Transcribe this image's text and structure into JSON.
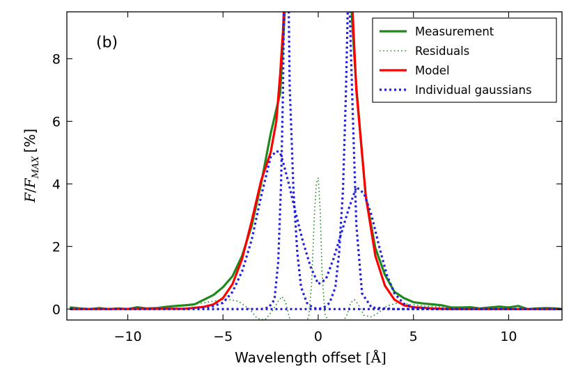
{
  "chart_data": {
    "type": "line",
    "panel_label": "(b)",
    "xlabel": "Wavelength offset",
    "xlabel_unit": "[Å]",
    "ylabel": {
      "F": "F",
      "slash": "/",
      "F_MAX": "F",
      "sub": "MAX",
      "unit": "[%]"
    },
    "xlim": [
      -13.2,
      12.8
    ],
    "ylim": [
      -0.35,
      9.5
    ],
    "x_ticks": [
      -10,
      -5,
      0,
      5,
      10
    ],
    "x_tick_labels": [
      "−10",
      "−5",
      "0",
      "5",
      "10"
    ],
    "y_ticks": [
      0,
      2,
      4,
      6,
      8
    ],
    "y_tick_labels": [
      "0",
      "2",
      "4",
      "6",
      "8"
    ],
    "legend_position": "top-right",
    "colors": {
      "measurement": "#1e8a1e",
      "residuals": "#1e8a1e",
      "model": "#ff0000",
      "gaussians": "#1f1fdd"
    },
    "series": [
      {
        "name": "Measurement",
        "style": "solid-thick",
        "color": "#1e8a1e",
        "x": [
          -13,
          -12.5,
          -12,
          -11.5,
          -11,
          -10.5,
          -10,
          -9.5,
          -9,
          -8.5,
          -8,
          -7.5,
          -7,
          -6.5,
          -6,
          -5.5,
          -5,
          -4.5,
          -4,
          -3.5,
          -3,
          -2.5,
          -2,
          -1.8,
          -1.75,
          1.75,
          1.8,
          2,
          2.5,
          3,
          3.5,
          4,
          4.5,
          5,
          5.5,
          6,
          6.5,
          7,
          7.5,
          8,
          8.5,
          9,
          9.5,
          10,
          10.5,
          11,
          11.5,
          12,
          12.5,
          12.8
        ],
        "y": [
          0.05,
          0.02,
          0.0,
          0.03,
          0.0,
          0.02,
          0.0,
          0.06,
          0.02,
          0.03,
          0.07,
          0.1,
          0.12,
          0.15,
          0.3,
          0.45,
          0.7,
          1.05,
          1.7,
          2.65,
          4.0,
          5.6,
          6.9,
          9.0,
          9.6,
          9.6,
          9.0,
          7.1,
          3.6,
          1.95,
          1.1,
          0.55,
          0.35,
          0.22,
          0.18,
          0.15,
          0.12,
          0.05,
          0.05,
          0.06,
          0.02,
          0.05,
          0.08,
          0.05,
          0.1,
          0.0,
          0.02,
          0.03,
          0.02,
          0.0
        ]
      },
      {
        "name": "Residuals",
        "style": "dotted-thin",
        "color": "#1e8a1e",
        "x": [
          -13,
          -9,
          -7,
          -5.5,
          -4.8,
          -4.2,
          -3.6,
          -3.2,
          -2.8,
          -2.4,
          -2.1,
          -1.9,
          -1.7,
          -1.5,
          -1.2,
          -0.7,
          -0.5,
          -0.35,
          -0.2,
          -0.1,
          0.0,
          0.1,
          0.2,
          0.35,
          0.5,
          0.8,
          1.2,
          1.5,
          1.7,
          1.9,
          2.1,
          2.4,
          2.8,
          3.2,
          3.6,
          4.2,
          4.8,
          5.5,
          7,
          9,
          12.8
        ],
        "y": [
          0.0,
          0.02,
          0.1,
          0.25,
          0.32,
          0.25,
          0.0,
          -0.3,
          -0.35,
          -0.05,
          0.25,
          0.4,
          0.2,
          -0.3,
          -0.5,
          -0.5,
          -0.25,
          0.8,
          3.0,
          4.0,
          4.2,
          3.2,
          1.2,
          -0.15,
          -0.35,
          -0.5,
          -0.5,
          -0.2,
          0.2,
          0.3,
          0.15,
          -0.2,
          -0.25,
          -0.1,
          0.1,
          0.2,
          0.15,
          0.1,
          0.05,
          0.02,
          0.0
        ]
      },
      {
        "name": "Model",
        "style": "solid-thick",
        "color": "#ff0000",
        "x": [
          -13,
          -7,
          -6,
          -5.5,
          -5,
          -4.5,
          -4,
          -3.5,
          -3,
          -2.5,
          -2.2,
          -2,
          -1.85,
          -1.8,
          1.8,
          1.85,
          2,
          2.5,
          3,
          3.5,
          4,
          4.5,
          5,
          6,
          7,
          12.8
        ],
        "y": [
          0.0,
          0.01,
          0.07,
          0.15,
          0.35,
          0.8,
          1.6,
          2.8,
          4.1,
          5.0,
          6.0,
          7.5,
          8.9,
          9.6,
          9.6,
          8.9,
          7.0,
          3.6,
          1.7,
          0.75,
          0.3,
          0.12,
          0.06,
          0.02,
          0.0,
          0.0
        ]
      },
      {
        "name": "Individual gaussians",
        "style": "dotted-thick",
        "color": "#1f1fdd",
        "x": [
          -13,
          -6.5,
          -5.8,
          -5,
          -4.5,
          -4,
          -3.5,
          -3,
          -2.5,
          -2.2,
          -2,
          -1.8,
          -1.5,
          -1.2,
          -0.8,
          -0.4,
          0,
          0.4,
          0.8,
          1.2,
          1.6,
          2,
          2.4,
          2.8,
          3.2,
          3.6,
          4,
          4.5,
          5,
          5.5,
          6,
          7,
          12.8
        ],
        "y": [
          0.0,
          0.0,
          0.04,
          0.2,
          0.55,
          1.2,
          2.2,
          3.6,
          4.85,
          5.05,
          5.0,
          4.6,
          3.9,
          3.1,
          2.15,
          1.35,
          0.8,
          0.95,
          1.6,
          2.4,
          3.2,
          3.9,
          3.7,
          3.0,
          2.0,
          1.1,
          0.5,
          0.17,
          0.05,
          0.02,
          0.0,
          0.0,
          0.0
        ]
      },
      {
        "name": "Individual gaussians (narrow left)",
        "style": "dotted-thick",
        "color": "#1f1fdd",
        "legend": false,
        "x": [
          -13,
          -4,
          -3,
          -2.6,
          -2.3,
          -2.1,
          -1.95,
          -1.85,
          -1.8,
          -1.55,
          -1.5,
          -1.3,
          -1.1,
          -0.9,
          -0.6,
          -0.3,
          0,
          0.5,
          12.8
        ],
        "y": [
          0.0,
          0.0,
          0.0,
          0.05,
          0.3,
          1.5,
          4.0,
          7.0,
          9.6,
          9.6,
          7.2,
          3.8,
          1.8,
          0.7,
          0.2,
          0.05,
          0.0,
          0.0,
          0.0
        ]
      },
      {
        "name": "Individual gaussians (narrow right)",
        "style": "dotted-thick",
        "color": "#1f1fdd",
        "legend": false,
        "x": [
          -13,
          -0.5,
          0,
          0.3,
          0.6,
          0.9,
          1.1,
          1.3,
          1.45,
          1.55,
          1.65,
          1.8,
          2.0,
          2.3,
          2.8,
          4,
          12.8
        ],
        "y": [
          0.0,
          0.0,
          0.0,
          0.05,
          0.2,
          0.7,
          1.8,
          3.8,
          6.8,
          9.6,
          9.6,
          6.5,
          2.7,
          0.5,
          0.05,
          0.0,
          0.0
        ]
      }
    ],
    "legend": [
      {
        "label": "Measurement",
        "style": "solid",
        "color": "#1e8a1e"
      },
      {
        "label": "Residuals",
        "style": "dotted-thin",
        "color": "#1e8a1e"
      },
      {
        "label": "Model",
        "style": "solid",
        "color": "#ff0000"
      },
      {
        "label": "Individual gaussians",
        "style": "dotted",
        "color": "#1f1fdd"
      }
    ]
  }
}
